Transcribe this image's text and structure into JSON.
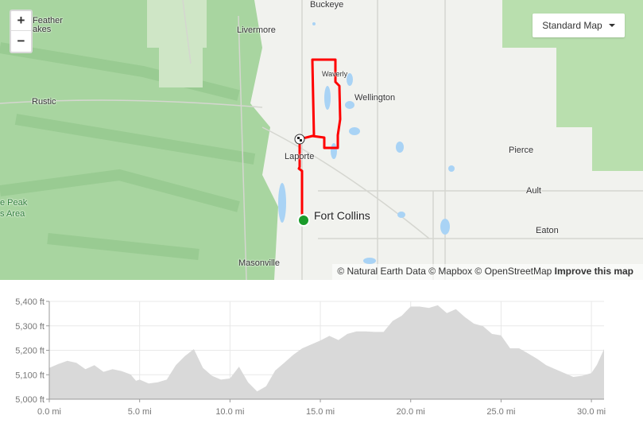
{
  "map": {
    "style_button": "Standard Map",
    "zoom_in": "+",
    "zoom_out": "−",
    "labels": [
      {
        "text": "Buckeye",
        "cls": ""
      },
      {
        "text": "Livermore",
        "cls": ""
      },
      {
        "text": "Feather",
        "cls": ""
      },
      {
        "text": "akes",
        "cls": ""
      },
      {
        "text": "Rustic",
        "cls": ""
      },
      {
        "text": "Waverly",
        "cls": ""
      },
      {
        "text": "Wellington",
        "cls": ""
      },
      {
        "text": "Laporte",
        "cls": ""
      },
      {
        "text": "Fort Collins",
        "cls": "big"
      },
      {
        "text": "Pierce",
        "cls": ""
      },
      {
        "text": "Ault",
        "cls": ""
      },
      {
        "text": "Eaton",
        "cls": ""
      },
      {
        "text": "Masonville",
        "cls": ""
      },
      {
        "text": "e Peak",
        "cls": "park"
      },
      {
        "text": "s Area",
        "cls": "park"
      }
    ],
    "attribution": {
      "sources": "© Natural Earth Data © Mapbox © OpenStreetMap",
      "improve": "Improve this map"
    },
    "colors": {
      "route": "#ff0000",
      "start": "#1a9b2a",
      "mountains": "#a8d5a0",
      "land": "#f1f2ee",
      "water": "#a9d3f5"
    },
    "icons": {
      "start": "green-dot",
      "finish": "checkered-flag"
    }
  },
  "chart_data": {
    "type": "area",
    "xlabel": "",
    "ylabel": "",
    "x_unit": "mi",
    "y_unit": "ft",
    "xlim": [
      0,
      30.7
    ],
    "ylim": [
      5000,
      5400
    ],
    "x_ticks": [
      "0.0 mi",
      "5.0 mi",
      "10.0 mi",
      "15.0 mi",
      "20.0 mi",
      "25.0 mi",
      "30.0 mi"
    ],
    "y_ticks": [
      "5,000 ft",
      "5,100 ft",
      "5,200 ft",
      "5,300 ft",
      "5,400 ft"
    ],
    "grid": true,
    "fill_color": "#d9d9d9",
    "x": [
      0,
      0.5,
      1,
      1.5,
      2,
      2.5,
      3,
      3.5,
      4,
      4.5,
      4.8,
      5,
      5.5,
      6,
      6.5,
      7,
      7.5,
      8,
      8.5,
      9,
      9.5,
      10,
      10.5,
      11,
      11.5,
      12,
      12.5,
      13,
      13.5,
      14,
      14.5,
      15,
      15.5,
      16,
      16.5,
      17,
      17.5,
      18,
      18.5,
      19,
      19.5,
      20,
      20.5,
      21,
      21.5,
      22,
      22.5,
      23,
      23.5,
      24,
      24.5,
      25,
      25.5,
      26,
      26.5,
      27,
      27.5,
      28,
      28.5,
      29,
      29.5,
      30,
      30.3,
      30.7
    ],
    "y": [
      5128,
      5144,
      5157,
      5149,
      5123,
      5139,
      5112,
      5123,
      5115,
      5101,
      5075,
      5080,
      5064,
      5069,
      5080,
      5139,
      5176,
      5205,
      5128,
      5096,
      5080,
      5085,
      5133,
      5069,
      5032,
      5053,
      5117,
      5149,
      5181,
      5208,
      5224,
      5240,
      5259,
      5242,
      5267,
      5277,
      5277,
      5275,
      5275,
      5320,
      5341,
      5379,
      5379,
      5373,
      5384,
      5352,
      5368,
      5336,
      5309,
      5299,
      5267,
      5261,
      5208,
      5208,
      5187,
      5165,
      5139,
      5123,
      5107,
      5091,
      5096,
      5107,
      5140,
      5205
    ]
  }
}
